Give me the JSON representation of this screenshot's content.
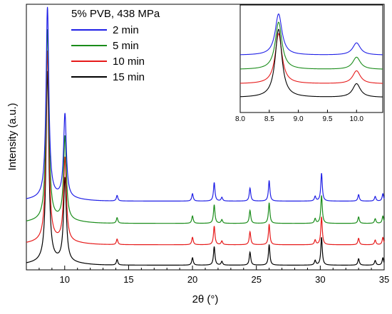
{
  "chart_data": {
    "type": "line",
    "legend_title": "5% PVB, 438 MPa",
    "xlabel": "2θ (°)",
    "ylabel": "Intensity (a.u.)",
    "xlim": [
      7,
      35
    ],
    "xticks": [
      10,
      15,
      20,
      25,
      30,
      35
    ],
    "y_ticks_labeled": false,
    "legend_position": "top-left",
    "series": [
      {
        "name": "2 min",
        "color": "#1f1fe6",
        "baseline": 0.74,
        "peaks": [
          {
            "x": 8.65,
            "height": 2.05
          },
          {
            "x": 10.02,
            "height": 0.9
          },
          {
            "x": 14.1,
            "height": 0.06
          },
          {
            "x": 20.0,
            "height": 0.08
          },
          {
            "x": 21.7,
            "height": 0.2
          },
          {
            "x": 22.3,
            "height": 0.04
          },
          {
            "x": 24.5,
            "height": 0.14
          },
          {
            "x": 26.0,
            "height": 0.22
          },
          {
            "x": 29.6,
            "height": 0.05
          },
          {
            "x": 30.1,
            "height": 0.3
          },
          {
            "x": 33.0,
            "height": 0.07
          },
          {
            "x": 34.3,
            "height": 0.05
          },
          {
            "x": 34.9,
            "height": 0.08
          }
        ]
      },
      {
        "name": "5 min",
        "color": "#1a8c1a",
        "baseline": 0.5,
        "peaks": [
          {
            "x": 8.65,
            "height": 2.05
          },
          {
            "x": 10.02,
            "height": 0.9
          },
          {
            "x": 14.1,
            "height": 0.06
          },
          {
            "x": 20.0,
            "height": 0.08
          },
          {
            "x": 21.7,
            "height": 0.2
          },
          {
            "x": 22.3,
            "height": 0.04
          },
          {
            "x": 24.5,
            "height": 0.14
          },
          {
            "x": 26.0,
            "height": 0.22
          },
          {
            "x": 29.6,
            "height": 0.05
          },
          {
            "x": 30.1,
            "height": 0.3
          },
          {
            "x": 33.0,
            "height": 0.07
          },
          {
            "x": 34.3,
            "height": 0.05
          },
          {
            "x": 34.9,
            "height": 0.08
          }
        ]
      },
      {
        "name": "10 min",
        "color": "#e61a1a",
        "baseline": 0.27,
        "peaks": [
          {
            "x": 8.65,
            "height": 2.05
          },
          {
            "x": 10.02,
            "height": 0.9
          },
          {
            "x": 14.1,
            "height": 0.06
          },
          {
            "x": 20.0,
            "height": 0.08
          },
          {
            "x": 21.7,
            "height": 0.2
          },
          {
            "x": 22.3,
            "height": 0.04
          },
          {
            "x": 24.5,
            "height": 0.14
          },
          {
            "x": 26.0,
            "height": 0.22
          },
          {
            "x": 29.6,
            "height": 0.05
          },
          {
            "x": 30.1,
            "height": 0.3
          },
          {
            "x": 33.0,
            "height": 0.07
          },
          {
            "x": 34.3,
            "height": 0.05
          },
          {
            "x": 34.9,
            "height": 0.08
          }
        ]
      },
      {
        "name": "15 min",
        "color": "#000000",
        "baseline": 0.05,
        "peaks": [
          {
            "x": 8.65,
            "height": 2.05
          },
          {
            "x": 10.02,
            "height": 0.9
          },
          {
            "x": 14.1,
            "height": 0.06
          },
          {
            "x": 20.0,
            "height": 0.08
          },
          {
            "x": 21.7,
            "height": 0.2
          },
          {
            "x": 22.3,
            "height": 0.04
          },
          {
            "x": 24.5,
            "height": 0.14
          },
          {
            "x": 26.0,
            "height": 0.22
          },
          {
            "x": 29.6,
            "height": 0.05
          },
          {
            "x": 30.1,
            "height": 0.3
          },
          {
            "x": 33.0,
            "height": 0.07
          },
          {
            "x": 34.3,
            "height": 0.05
          },
          {
            "x": 34.9,
            "height": 0.08
          }
        ]
      }
    ],
    "inset": {
      "xlim": [
        8.0,
        10.45
      ],
      "xticks": [
        8.0,
        8.5,
        9.0,
        9.5,
        10.0
      ],
      "xtick_labels": [
        "8.0",
        "8.5",
        "9.0",
        "9.5",
        "10.0"
      ]
    }
  }
}
